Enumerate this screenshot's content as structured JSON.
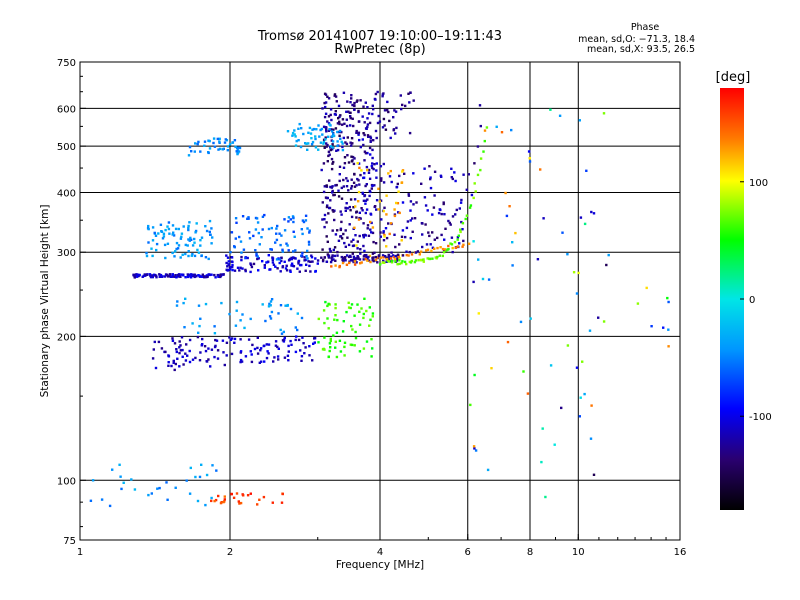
{
  "header": {
    "title": "Tromsø 20141007 19:10:00–19:11:43",
    "subtitle": "RwPretec (8p)"
  },
  "phase_info": {
    "heading": "Phase",
    "line_o": "mean, sd,O: −71.3, 18.4",
    "line_x": "mean, sd,X:  93.5, 26.5"
  },
  "colorbar": {
    "unit": "[deg]",
    "ticks": [
      {
        "value": 100,
        "label": "100"
      },
      {
        "value": 0,
        "label": "0"
      },
      {
        "value": -100,
        "label": "-100"
      }
    ],
    "range": [
      -180,
      180
    ]
  },
  "chart_data": {
    "type": "scatter",
    "xlabel": "Frequency [MHz]",
    "ylabel": "Stationary phase Virtual Height [km]",
    "xscale": "log",
    "yscale": "log",
    "xlim": [
      1,
      16
    ],
    "ylim": [
      75,
      750
    ],
    "xticks": [
      1,
      2,
      4,
      6,
      8,
      10,
      16
    ],
    "yticks": [
      75,
      100,
      200,
      300,
      400,
      500,
      600,
      750
    ],
    "xgrid": [
      2,
      4,
      6,
      8,
      10
    ],
    "ygrid": [
      100,
      200,
      300,
      400,
      500,
      600
    ],
    "color_encoding": "phase [deg]",
    "point_groups": [
      {
        "x": [
          1.28,
          1.95
        ],
        "y": [
          266,
          270
        ],
        "n": 120,
        "phase": [
          -130,
          -90
        ]
      },
      {
        "x": [
          1.95,
          3.0
        ],
        "y": [
          273,
          296
        ],
        "n": 110,
        "phase": [
          -130,
          -90
        ]
      },
      {
        "x": [
          3.0,
          4.4
        ],
        "y": [
          286,
          296
        ],
        "n": 80,
        "phase": [
          -140,
          -110
        ]
      },
      {
        "x": [
          1.35,
          1.85
        ],
        "y": [
          290,
          350
        ],
        "n": 90,
        "phase": [
          -60,
          -25
        ]
      },
      {
        "x": [
          2.0,
          2.9
        ],
        "y": [
          290,
          360
        ],
        "n": 80,
        "phase": [
          -75,
          -40
        ]
      },
      {
        "x": [
          3.05,
          3.6
        ],
        "y": [
          300,
          640
        ],
        "n": 190,
        "phase": [
          -150,
          -110
        ]
      },
      {
        "x": [
          3.6,
          3.95
        ],
        "y": [
          290,
          620
        ],
        "n": 110,
        "phase": [
          -140,
          -100
        ]
      },
      {
        "x": [
          3.1,
          4.7
        ],
        "y": [
          520,
          650
        ],
        "n": 80,
        "phase": [
          -150,
          -110
        ]
      },
      {
        "x": [
          2.6,
          3.4
        ],
        "y": [
          490,
          560
        ],
        "n": 60,
        "phase": [
          -50,
          -20
        ]
      },
      {
        "x": [
          1.65,
          2.1
        ],
        "y": [
          478,
          520
        ],
        "n": 45,
        "phase": [
          -60,
          -30
        ]
      },
      {
        "x": [
          4.0,
          5.9
        ],
        "y": [
          300,
          460
        ],
        "n": 100,
        "phase": [
          -140,
          -100
        ]
      },
      {
        "x": [
          1.4,
          2.0
        ],
        "y": [
          170,
          200
        ],
        "n": 70,
        "phase": [
          -130,
          -100
        ]
      },
      {
        "x": [
          2.0,
          3.0
        ],
        "y": [
          176,
          200
        ],
        "n": 70,
        "phase": [
          -125,
          -95
        ]
      },
      {
        "x": [
          1.55,
          2.8
        ],
        "y": [
          200,
          240
        ],
        "n": 45,
        "phase": [
          -60,
          -25
        ]
      },
      {
        "x": [
          3.0,
          3.9
        ],
        "y": [
          180,
          240
        ],
        "n": 70,
        "phase": [
          40,
          75
        ]
      },
      {
        "x": [
          3.5,
          4.5
        ],
        "y": [
          290,
          470
        ],
        "n": 40,
        "phase": [
          100,
          140
        ]
      },
      {
        "x": [
          1.05,
          1.9
        ],
        "y": [
          88,
          108
        ],
        "n": 30,
        "phase": [
          -60,
          -20
        ]
      },
      {
        "x": [
          1.8,
          2.6
        ],
        "y": [
          89,
          94
        ],
        "n": 28,
        "phase": [
          140,
          175
        ]
      },
      {
        "x": [
          6.0,
          11.5
        ],
        "y": [
          90,
          610
        ],
        "n": 70,
        "phase": [
          -150,
          160
        ]
      },
      {
        "x": [
          13.0,
          15.7
        ],
        "y": [
          190,
          270
        ],
        "n": 8,
        "phase": [
          -120,
          160
        ]
      }
    ],
    "point_traces": [
      {
        "x0": 4.0,
        "x1": 6.55,
        "y0": 286,
        "y1": 545,
        "xexp": 5,
        "n": 60,
        "phase": [
          55,
          85
        ]
      },
      {
        "x0": 3.2,
        "x1": 6.0,
        "y0": 280,
        "y1": 312,
        "xexp": 1,
        "n": 45,
        "phase": [
          120,
          150
        ]
      },
      {
        "x0": 3.15,
        "x1": 6.4,
        "y0": 296,
        "y1": 550,
        "xexp": 6,
        "n": 40,
        "phase": [
          -140,
          -110
        ]
      }
    ]
  }
}
